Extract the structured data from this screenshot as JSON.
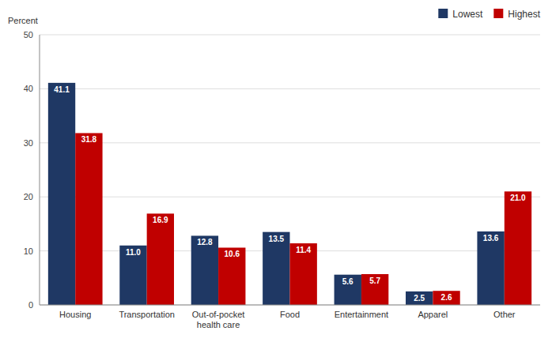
{
  "chart_data": {
    "type": "bar",
    "ylabel": "Percent",
    "categories": [
      "Housing",
      "Transportation",
      "Out-of-pocket\nhealth care",
      "Food",
      "Entertainment",
      "Apparel",
      "Other"
    ],
    "series": [
      {
        "name": "Lowest",
        "color": "#1f3864",
        "values": [
          41.1,
          11.0,
          12.8,
          13.5,
          5.6,
          2.5,
          13.6
        ],
        "value_labels": [
          "41.1",
          "11.0",
          "12.8",
          "13.5",
          "5.6",
          "2.5",
          "13.6"
        ]
      },
      {
        "name": "Highest",
        "color": "#c00000",
        "values": [
          31.8,
          16.9,
          10.6,
          11.4,
          5.7,
          2.6,
          21.0
        ],
        "value_labels": [
          "31.8",
          "16.9",
          "10.6",
          "11.4",
          "5.7",
          "2.6",
          "21.0"
        ]
      }
    ],
    "ylim": [
      0,
      50
    ],
    "yticks": [
      0,
      10,
      20,
      30,
      40,
      50
    ],
    "grid": true,
    "legend": "upper right",
    "data_labels": true
  }
}
